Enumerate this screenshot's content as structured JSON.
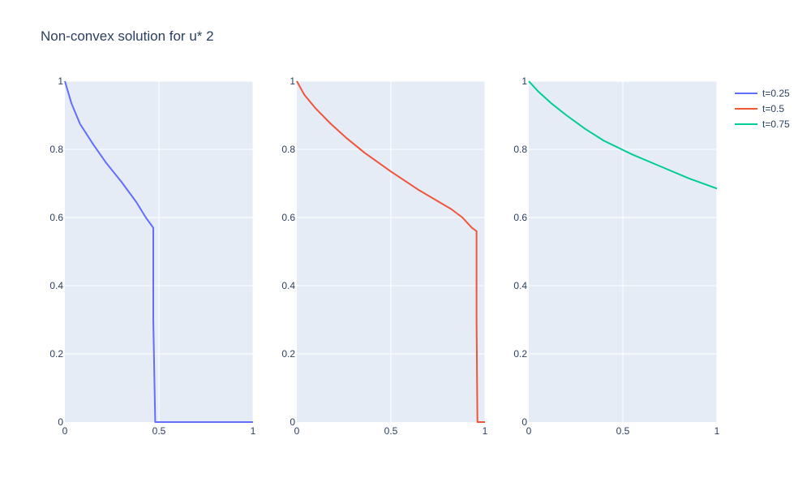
{
  "figure": {
    "title": "Non-convex solution for u* 2",
    "plot_bg": "#e5ecf6",
    "grid_color": "#ffffff",
    "text_color": "#2a3f5f"
  },
  "legend": {
    "placement": "top-right",
    "items": [
      {
        "label": "t=0.25",
        "color": "#636efa"
      },
      {
        "label": "t=0.5",
        "color": "#ef553b"
      },
      {
        "label": "t=0.75",
        "color": "#00cc96"
      }
    ]
  },
  "chart_data": [
    {
      "type": "line",
      "xlim": [
        0,
        1
      ],
      "ylim": [
        0,
        1
      ],
      "x_ticks": [
        0,
        0.5,
        1
      ],
      "x_tick_labels": [
        "0",
        "0.5",
        "1"
      ],
      "y_ticks": [
        0,
        0.2,
        0.4,
        0.6,
        0.8,
        1
      ],
      "y_tick_labels": [
        "0",
        "0.2",
        "0.4",
        "0.6",
        "0.8",
        "1"
      ],
      "grid": true,
      "series": [
        {
          "name": "t=0.25",
          "color": "#636efa",
          "x": [
            0,
            0.035,
            0.08,
            0.15,
            0.22,
            0.3,
            0.38,
            0.43,
            0.47,
            0.47,
            0.48,
            0.5,
            1
          ],
          "y": [
            1,
            0.935,
            0.875,
            0.815,
            0.76,
            0.705,
            0.645,
            0.6,
            0.57,
            0.3,
            0,
            0,
            0
          ]
        }
      ]
    },
    {
      "type": "line",
      "xlim": [
        0,
        1
      ],
      "ylim": [
        0,
        1
      ],
      "x_ticks": [
        0,
        0.5,
        1
      ],
      "x_tick_labels": [
        "0",
        "0.5",
        "1"
      ],
      "y_ticks": [
        0,
        0.2,
        0.4,
        0.6,
        0.8,
        1
      ],
      "y_tick_labels": [
        "0",
        "0.2",
        "0.4",
        "0.6",
        "0.8",
        "1"
      ],
      "grid": true,
      "series": [
        {
          "name": "t=0.5",
          "color": "#ef553b",
          "x": [
            0,
            0.04,
            0.1,
            0.18,
            0.26,
            0.36,
            0.5,
            0.65,
            0.82,
            0.88,
            0.93,
            0.955,
            0.955,
            0.96,
            1
          ],
          "y": [
            1,
            0.96,
            0.92,
            0.875,
            0.835,
            0.79,
            0.735,
            0.68,
            0.625,
            0.6,
            0.57,
            0.56,
            0.3,
            0,
            0
          ]
        }
      ]
    },
    {
      "type": "line",
      "xlim": [
        0,
        1
      ],
      "ylim": [
        0,
        1
      ],
      "x_ticks": [
        0,
        0.5,
        1
      ],
      "x_tick_labels": [
        "0",
        "0.5",
        "1"
      ],
      "y_ticks": [
        0,
        0.2,
        0.4,
        0.6,
        0.8,
        1
      ],
      "y_tick_labels": [
        "0",
        "0.2",
        "0.4",
        "0.6",
        "0.8",
        "1"
      ],
      "grid": true,
      "series": [
        {
          "name": "t=0.75",
          "color": "#00cc96",
          "x": [
            0,
            0.05,
            0.12,
            0.2,
            0.3,
            0.4,
            0.55,
            0.7,
            0.85,
            1
          ],
          "y": [
            1,
            0.97,
            0.935,
            0.9,
            0.86,
            0.825,
            0.785,
            0.75,
            0.715,
            0.685
          ]
        }
      ]
    }
  ]
}
